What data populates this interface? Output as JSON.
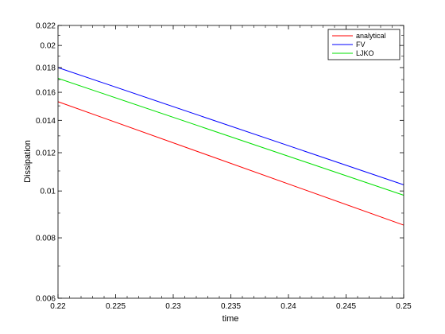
{
  "chart_data": {
    "type": "line",
    "title": "",
    "xlabel": "time",
    "ylabel": "Dissipation",
    "xlim": [
      0.22,
      0.25
    ],
    "ylim": [
      0.006,
      0.022
    ],
    "yscale": "log",
    "grid": false,
    "legend_position": "top-right",
    "x_ticks": [
      0.22,
      0.225,
      0.23,
      0.235,
      0.24,
      0.245,
      0.25
    ],
    "x_tick_labels": [
      "0.22",
      "0.225",
      "0.23",
      "0.235",
      "0.24",
      "0.245",
      "0.25"
    ],
    "y_ticks": [
      0.006,
      0.008,
      0.01,
      0.012,
      0.014,
      0.016,
      0.018,
      0.02,
      0.022
    ],
    "y_tick_labels": [
      "0.006",
      "0.008",
      "0.01",
      "0.012",
      "0.014",
      "0.016",
      "0.018",
      "0.02",
      "0.022"
    ],
    "series": [
      {
        "name": "analytical",
        "color": "#ff0000",
        "x": [
          0.22,
          0.25
        ],
        "y": [
          0.0153,
          0.0085
        ]
      },
      {
        "name": "FV",
        "color": "#0000ff",
        "x": [
          0.22,
          0.25
        ],
        "y": [
          0.018,
          0.0103
        ]
      },
      {
        "name": "LJKO",
        "color": "#00e000",
        "x": [
          0.22,
          0.25
        ],
        "y": [
          0.0171,
          0.0098
        ]
      }
    ]
  }
}
